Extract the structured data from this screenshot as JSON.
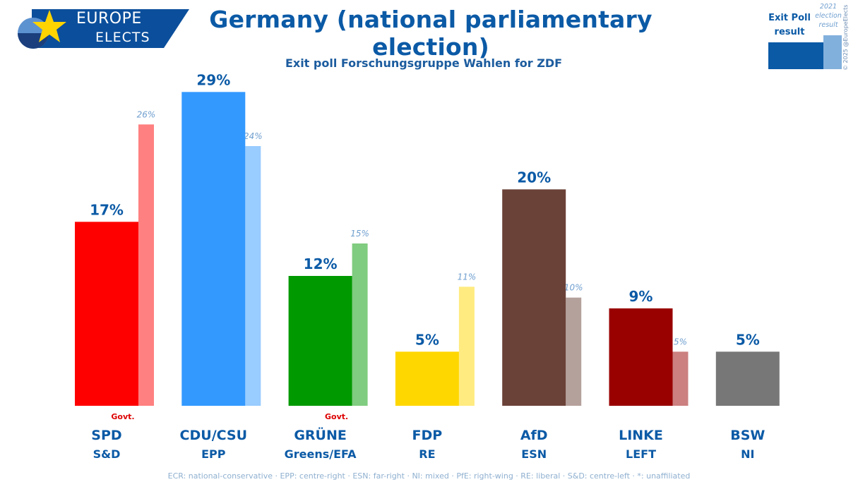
{
  "logo": {
    "top": "EUROPE",
    "bottom": "ELECTS"
  },
  "title": "Germany (national parliamentary election)",
  "subtitle": "Exit poll Forschungsgruppe Wahlen for ZDF",
  "legend": {
    "current_label": "Exit Poll result",
    "previous_label": "2021 election result",
    "current_color": "#0a5aa6",
    "previous_color": "#82b0dc"
  },
  "copyright": "© 2025 @EuropeElects",
  "footer": "ECR: national-conservative · EPP: centre-right · ESN: far-right · NI: mixed · PfE: right-wing · RE: liberal · S&D: centre-left · *: unaffiliated",
  "chart_data": {
    "type": "bar",
    "title": "Germany (national parliamentary election)",
    "ylim": [
      0,
      30
    ],
    "grid": false,
    "legend_position": "top-right",
    "categories": [
      "SPD",
      "CDU/CSU",
      "GRÜNE",
      "FDP",
      "AfD",
      "LINKE",
      "BSW"
    ],
    "groups": [
      "S&D",
      "EPP",
      "Greens/EFA",
      "RE",
      "ESN",
      "LEFT",
      "NI"
    ],
    "series": [
      {
        "name": "Exit Poll result",
        "values": [
          17,
          29,
          12,
          5,
          20,
          9,
          5
        ],
        "labels": [
          "17%",
          "29%",
          "12%",
          "5%",
          "20%",
          "9%",
          "5%"
        ],
        "colors": [
          "#ff0000",
          "#3399ff",
          "#009900",
          "#ffd700",
          "#6b4238",
          "#990000",
          "#777777"
        ]
      },
      {
        "name": "2021 election result",
        "values": [
          26,
          24,
          15,
          11,
          10,
          5,
          null
        ],
        "labels": [
          "26%",
          "24%",
          "15%",
          "11%",
          "10%",
          "5%",
          ""
        ],
        "colors": [
          "#ff8080",
          "#99ccff",
          "#80cc80",
          "#ffeb80",
          "#b5a19c",
          "#cc8080",
          "#bbbbbb"
        ]
      }
    ],
    "annotations": [
      "Govt.",
      "",
      "Govt.",
      "",
      "",
      "",
      ""
    ],
    "annotation_color": "#dd0000",
    "label_color": "#0b5aa6",
    "prev_label_color": "#6f9fcf"
  }
}
